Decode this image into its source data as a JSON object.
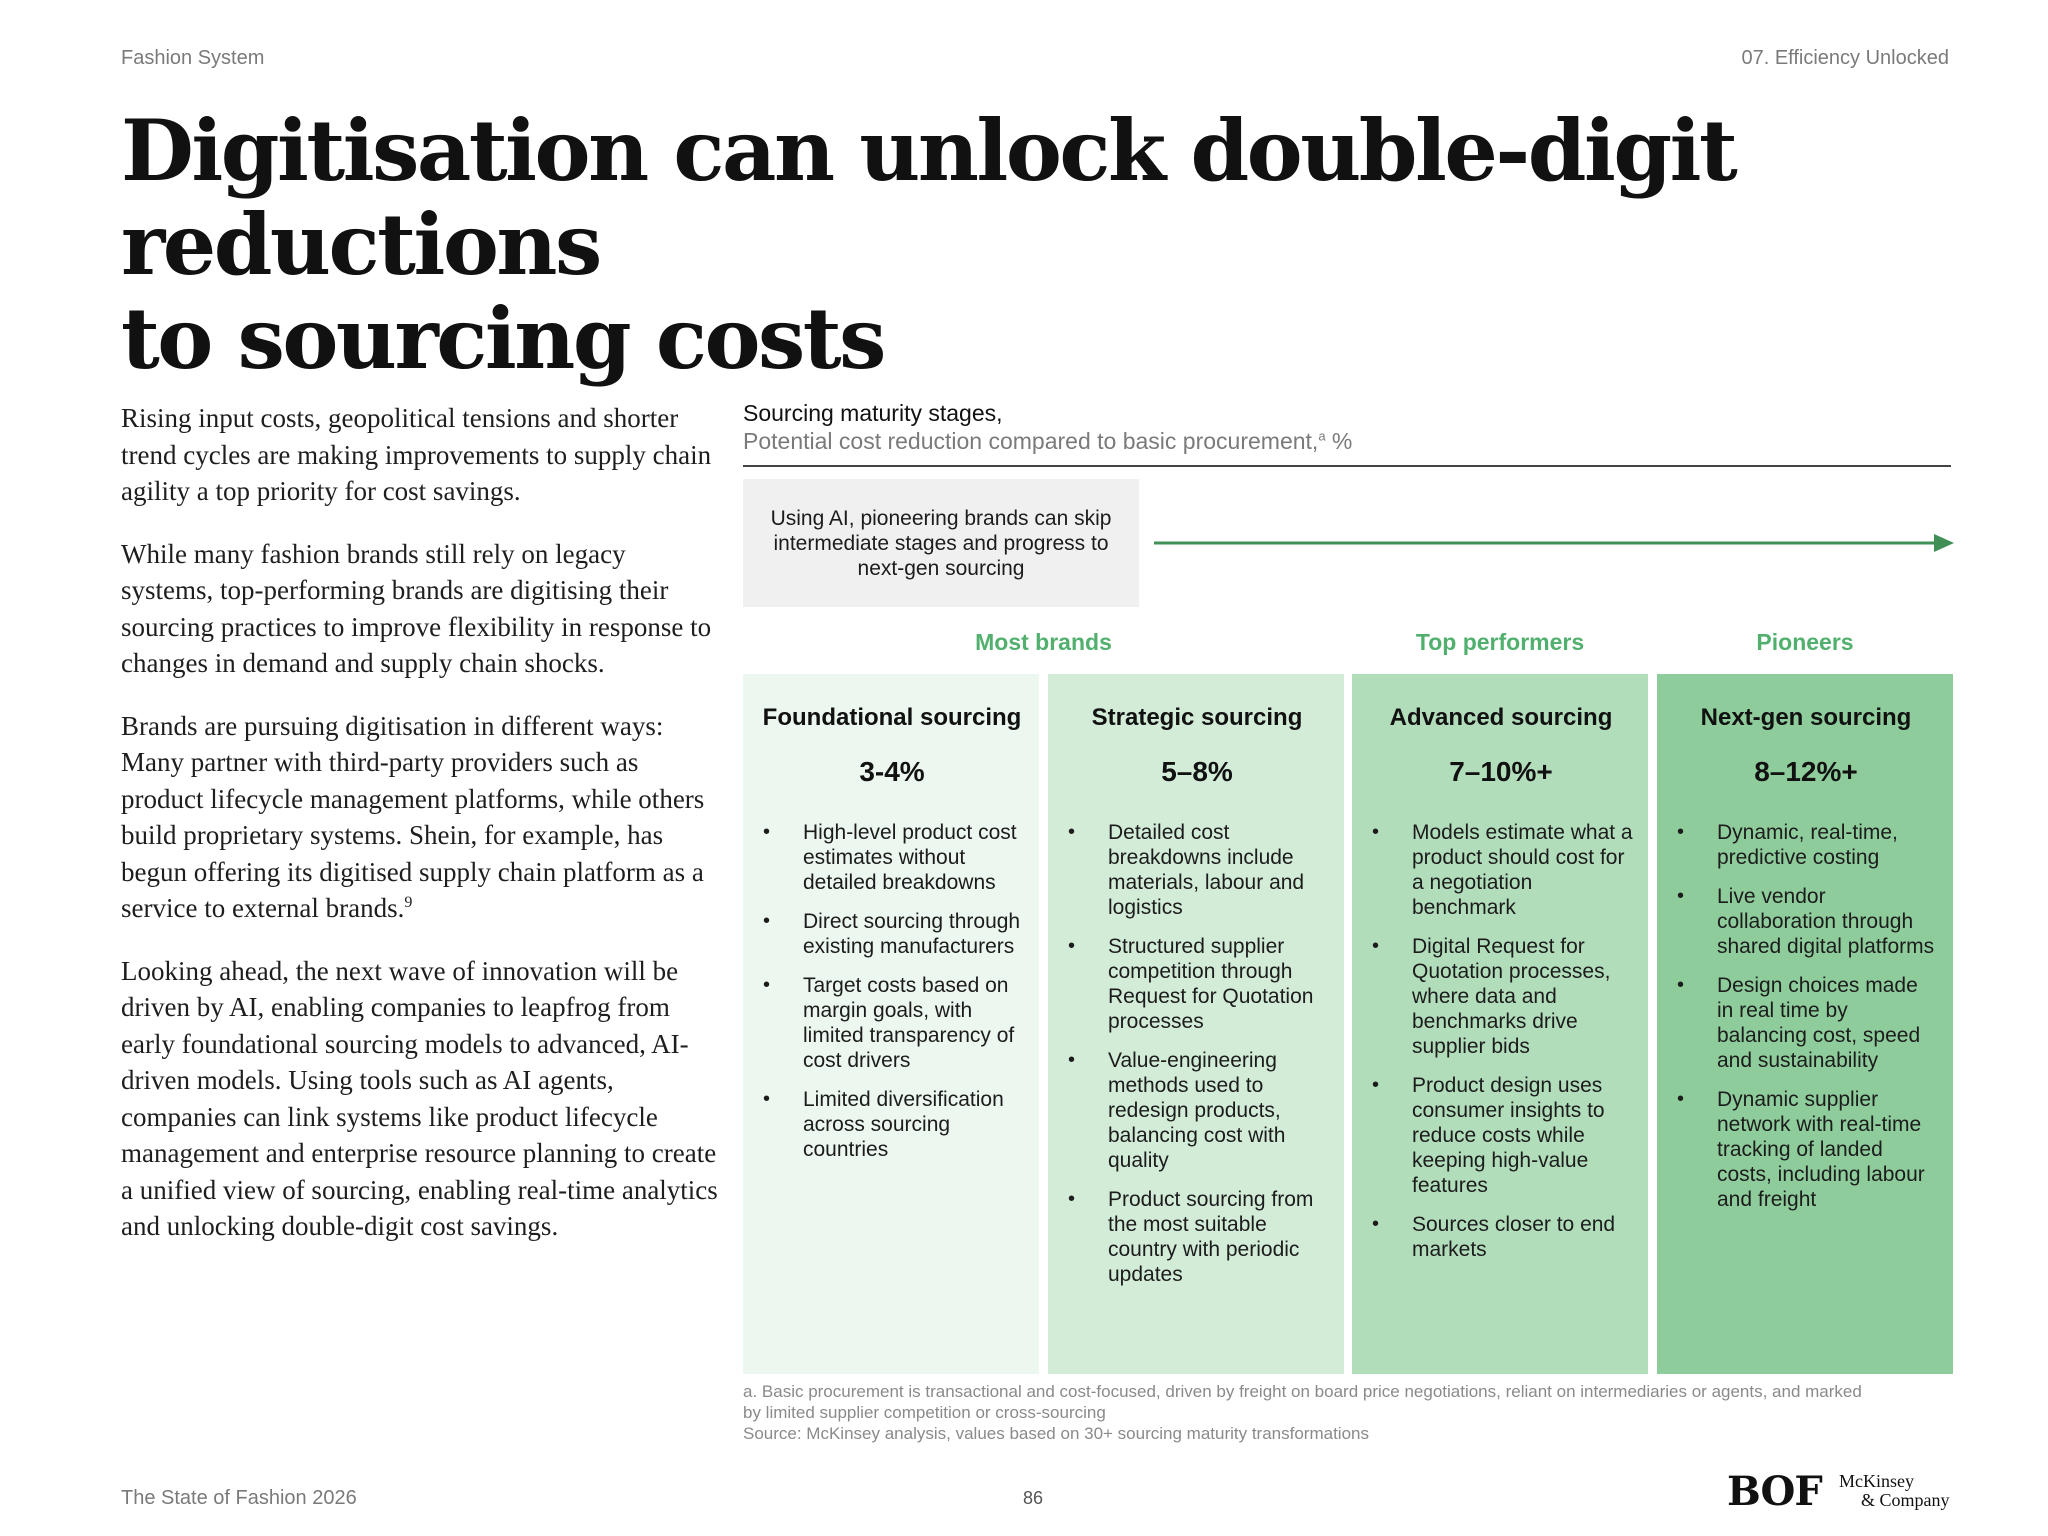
{
  "header": {
    "left": "Fashion System",
    "right": "07. Efficiency Unlocked"
  },
  "title": {
    "line1": "Digitisation can unlock double-digit reductions",
    "line2": "to sourcing costs"
  },
  "body": {
    "p1": "Rising input costs, geopolitical tensions and shorter trend cycles are making improvements to supply chain agility a top priority for cost savings.",
    "p2": "While many fashion brands still rely on legacy systems, top-performing brands are digitising their sourcing practices to improve flexibility in response to changes in demand and supply chain shocks.",
    "p3": "Brands are pursuing digitisation in different ways: Many partner with third-party providers such as product lifecycle management platforms, while others build proprietary systems. Shein, for example, has begun offering its digitised supply chain platform as a service to external brands.",
    "p3_sup": "9",
    "p4": "Looking ahead, the next wave of innovation will be driven by AI, enabling companies to leapfrog from early foundational sourcing models to advanced, AI-driven models. Using tools such as AI agents, companies can link systems like product lifecycle management and enterprise resource planning to create a unified view of sourcing, enabling real-time analytics and unlocking double-digit cost savings."
  },
  "figure": {
    "title": "Sourcing maturity stages,",
    "subtitle": "Potential cost reduction compared to basic procurement,",
    "subtitle_sup": "a",
    "subtitle_unit": " %",
    "callout": "Using AI, pioneering brands can skip intermediate stages and progress to next-gen sourcing",
    "arrow_color": "#3f8f56",
    "groups": {
      "most": "Most brands",
      "top": "Top performers",
      "pioneers": "Pioneers"
    },
    "group_color": "#52b06f",
    "columns": [
      {
        "title": "Foundational sourcing",
        "value": "3-4%",
        "bullets": [
          "High-level product cost estimates without detailed breakdowns",
          "Direct sourcing through existing manufacturers",
          "Target costs based on margin goals, with limited transparency of cost drivers",
          "Limited diversification across sourcing countries"
        ]
      },
      {
        "title": "Strategic sourcing",
        "value": "5–8%",
        "bullets": [
          "Detailed cost breakdowns include materials, labour and logistics",
          "Structured supplier competition through Request for Quotation processes",
          "Value-engineering methods used to redesign products, balancing cost with quality",
          "Product sourcing from the most suitable country with periodic updates"
        ]
      },
      {
        "title": "Advanced sourcing",
        "value": "7–10%+",
        "bullets": [
          "Models estimate what a product should cost for a negotiation benchmark",
          "Digital Request for Quotation processes, where data and benchmarks drive supplier bids",
          "Product design uses consumer insights to reduce costs while keeping high-value features",
          "Sources closer to end markets"
        ]
      },
      {
        "title": "Next-gen sourcing",
        "value": "8–12%+",
        "bullets": [
          "Dynamic, real-time, predictive costing",
          "Live vendor collaboration through shared digital platforms",
          "Design choices made in real time by balancing cost, speed and sustainability",
          "Dynamic supplier network with real-time tracking of landed costs, including labour and freight"
        ]
      }
    ],
    "column_colors": [
      "#ecf7ef",
      "#d3ecd8",
      "#b2ddbb",
      "#8ecc9b"
    ],
    "footnote_a": "a. Basic procurement is transactional and cost-focused, driven by freight on board price negotiations, reliant on intermediaries or agents, and marked by limited supplier competition or cross-sourcing",
    "source": "Source: McKinsey analysis, values based on 30+ sourcing maturity transformations"
  },
  "footer": {
    "left": "The State of Fashion 2026",
    "page": "86",
    "logo_bof": "BOF",
    "logo_mck_line1": "McKinsey",
    "logo_mck_line2": "& Company"
  }
}
